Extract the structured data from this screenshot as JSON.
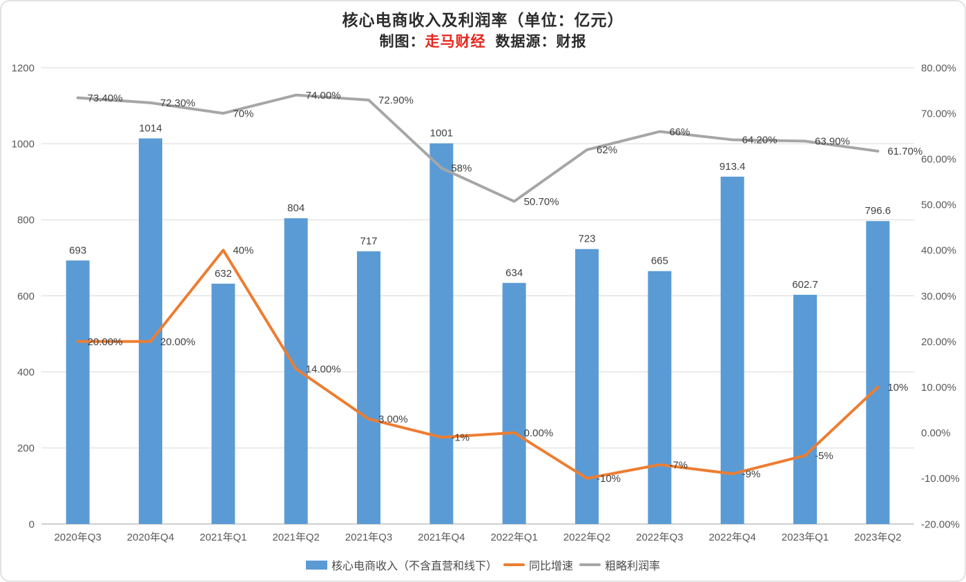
{
  "title": "核心电商收入及利润率（单位：亿元）",
  "subtitle": {
    "prefix": "制图：",
    "author": "走马财经",
    "suffix": "数据源：财报"
  },
  "colors": {
    "bar": "#5B9BD5",
    "growth_line": "#ED7D31",
    "margin_line": "#A6A6A6",
    "author_red": "#e8251c",
    "gridline": "#D9D9D9",
    "axis_line": "#BFBFBF",
    "data_label": "#404040",
    "axis_label": "#595959"
  },
  "legend": [
    {
      "label": "核心电商收入（不含直营和线下）",
      "marker": "bar-swatch"
    },
    {
      "label": "同比增速",
      "marker": "orange-line"
    },
    {
      "label": "粗略利润率",
      "marker": "gray-line"
    }
  ],
  "chart_data": {
    "type": "bar",
    "categories": [
      "2020年Q3",
      "2020年Q4",
      "2021年Q1",
      "2021年Q2",
      "2021年Q3",
      "2021年Q4",
      "2022年Q1",
      "2022年Q2",
      "2022年Q3",
      "2022年Q4",
      "2023年Q1",
      "2023年Q2"
    ],
    "series": [
      {
        "name": "核心电商收入（不含直营和线下）",
        "type": "bar",
        "axis": "left",
        "values": [
          693,
          1014,
          632,
          804,
          717,
          1001,
          634,
          723,
          665,
          913.4,
          602.7,
          796.6
        ],
        "labels": [
          "693",
          "1014",
          "632",
          "804",
          "717",
          "1001",
          "634",
          "723",
          "665",
          "913.4",
          "602.7",
          "796.6"
        ]
      },
      {
        "name": "同比增速",
        "type": "line",
        "axis": "right",
        "values": [
          20,
          20,
          40,
          14,
          3,
          -1,
          0,
          -10,
          -7,
          -9,
          -5,
          10
        ],
        "labels": [
          "20.00%",
          "20.00%",
          "40%",
          "14.00%",
          "3.00%",
          "-1%",
          "0.00%",
          "-10%",
          "-7%",
          "-9%",
          "-5%",
          "10%"
        ]
      },
      {
        "name": "粗略利润率",
        "type": "line",
        "axis": "right",
        "values": [
          73.4,
          72.3,
          70,
          74,
          72.9,
          58,
          50.7,
          62,
          66,
          64.2,
          63.9,
          61.7
        ],
        "labels": [
          "73.40%",
          "72.30%",
          "70%",
          "74.00%",
          "72.90%",
          "58%",
          "50.70%",
          "62%",
          "66%",
          "64.20%",
          "63.90%",
          "61.70%"
        ]
      }
    ],
    "left_axis": {
      "min": 0,
      "max": 1200,
      "tick_labels": [
        "1200",
        "1000",
        "800",
        "600",
        "400",
        "200",
        "0"
      ]
    },
    "right_axis": {
      "min": -20,
      "max": 80,
      "tick_labels": [
        "80.00%",
        "70.00%",
        "60.00%",
        "50.00%",
        "40.00%",
        "30.00%",
        "20.00%",
        "10.00%",
        "0.00%",
        "-10.00%",
        "-20.00%"
      ]
    },
    "grid": "horizontal",
    "legend_position": "bottom"
  }
}
